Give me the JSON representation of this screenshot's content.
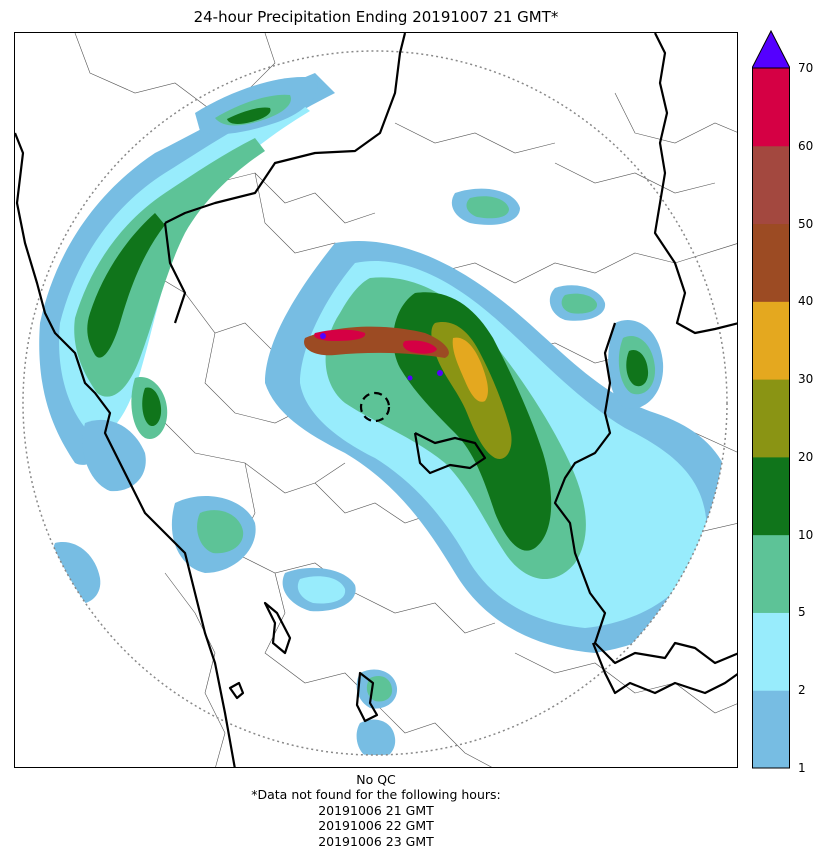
{
  "chart_data": {
    "type": "radar-precipitation-map",
    "title": "24-hour Precipitation Ending 20191007 21 GMT*",
    "colorbar": {
      "ticks": [
        "1",
        "2",
        "5",
        "10",
        "20",
        "30",
        "40",
        "50",
        "60",
        "70"
      ],
      "bins": [
        {
          "from": 1,
          "to": 2,
          "color": "#77bde3"
        },
        {
          "from": 2,
          "to": 5,
          "color": "#98ecfc"
        },
        {
          "from": 5,
          "to": 10,
          "color": "#5dc397"
        },
        {
          "from": 10,
          "to": 20,
          "color": "#10751b"
        },
        {
          "from": 20,
          "to": 30,
          "color": "#8a9414"
        },
        {
          "from": 30,
          "to": 40,
          "color": "#e4a81f"
        },
        {
          "from": 40,
          "to": 50,
          "color": "#9c4b23"
        },
        {
          "from": 50,
          "to": 60,
          "color": "#a3483f"
        },
        {
          "from": 60,
          "to": 70,
          "color": "#d50044"
        }
      ],
      "extend_max": true,
      "over_color": "#5400ff"
    }
  },
  "footer": {
    "qc": "No QC",
    "note": "*Data not found for the following hours:",
    "missing_hours": [
      "20191006 21 GMT",
      "20191006 22 GMT",
      "20191006 23 GMT"
    ]
  }
}
